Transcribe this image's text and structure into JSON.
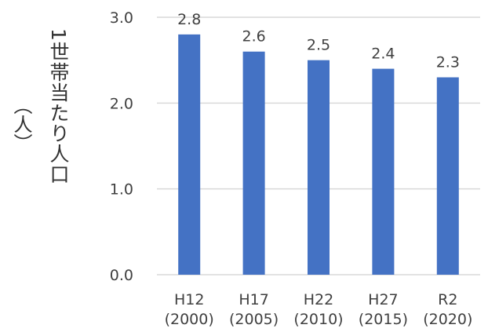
{
  "chart_data": {
    "type": "bar",
    "ylabel": "1世帯当たり人口",
    "yunit": "（人）",
    "categories": [
      {
        "top": "H12",
        "bottom": "(2000)"
      },
      {
        "top": "H17",
        "bottom": "(2005)"
      },
      {
        "top": "H22",
        "bottom": "(2010)"
      },
      {
        "top": "H27",
        "bottom": "(2015)"
      },
      {
        "top": "R2",
        "bottom": "(2020)"
      }
    ],
    "values": [
      2.8,
      2.6,
      2.5,
      2.4,
      2.3
    ],
    "value_labels": [
      "2.8",
      "2.6",
      "2.5",
      "2.4",
      "2.3"
    ],
    "ylim": [
      0,
      3.0
    ],
    "yticks": [
      "0.0",
      "1.0",
      "2.0",
      "3.0"
    ],
    "ytick_values": [
      0,
      1,
      2,
      3
    ],
    "grid": true,
    "legend": "none",
    "bar_color": "#4472C4",
    "grid_color": "#D9D9D9"
  }
}
